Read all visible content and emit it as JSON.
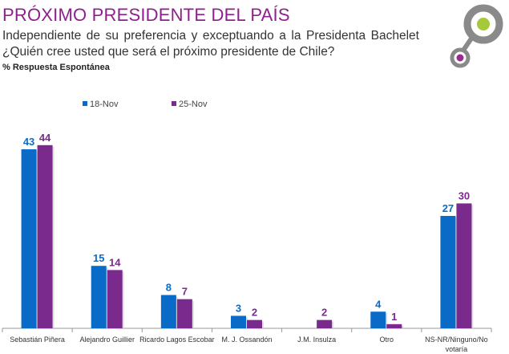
{
  "header": {
    "title": "PRÓXIMO PRESIDENTE DEL PAÍS",
    "subtitle1": "Independiente de su preferencia y exceptuando a la Presidenta Bachelet",
    "subtitle2": "¿Quién cree usted que será el próximo presidente de Chile?",
    "note": "% Respuesta Espontánea"
  },
  "logo": {
    "ring_color": "#8a8a8a",
    "dot1_color": "#a6c93a",
    "dot2_color": "#9b2c8f"
  },
  "chart_data": {
    "type": "bar",
    "categories": [
      "Sebastián Piñera",
      "Alejandro Guillier",
      "Ricardo Lagos Escobar",
      "M. J. Ossandón",
      "J.M. Insulza",
      "Otro",
      "NS-NR/Ninguno/No votaría"
    ],
    "series": [
      {
        "name": "18-Nov",
        "color": "#0a6ac8",
        "values": [
          43,
          15,
          8,
          3,
          null,
          4,
          27
        ]
      },
      {
        "name": "25-Nov",
        "color": "#7a2a8c",
        "values": [
          44,
          14,
          7,
          2,
          2,
          1,
          30
        ]
      }
    ],
    "ylim": [
      0,
      50
    ],
    "grid": false,
    "legend": "top-left",
    "data_labels": true
  }
}
